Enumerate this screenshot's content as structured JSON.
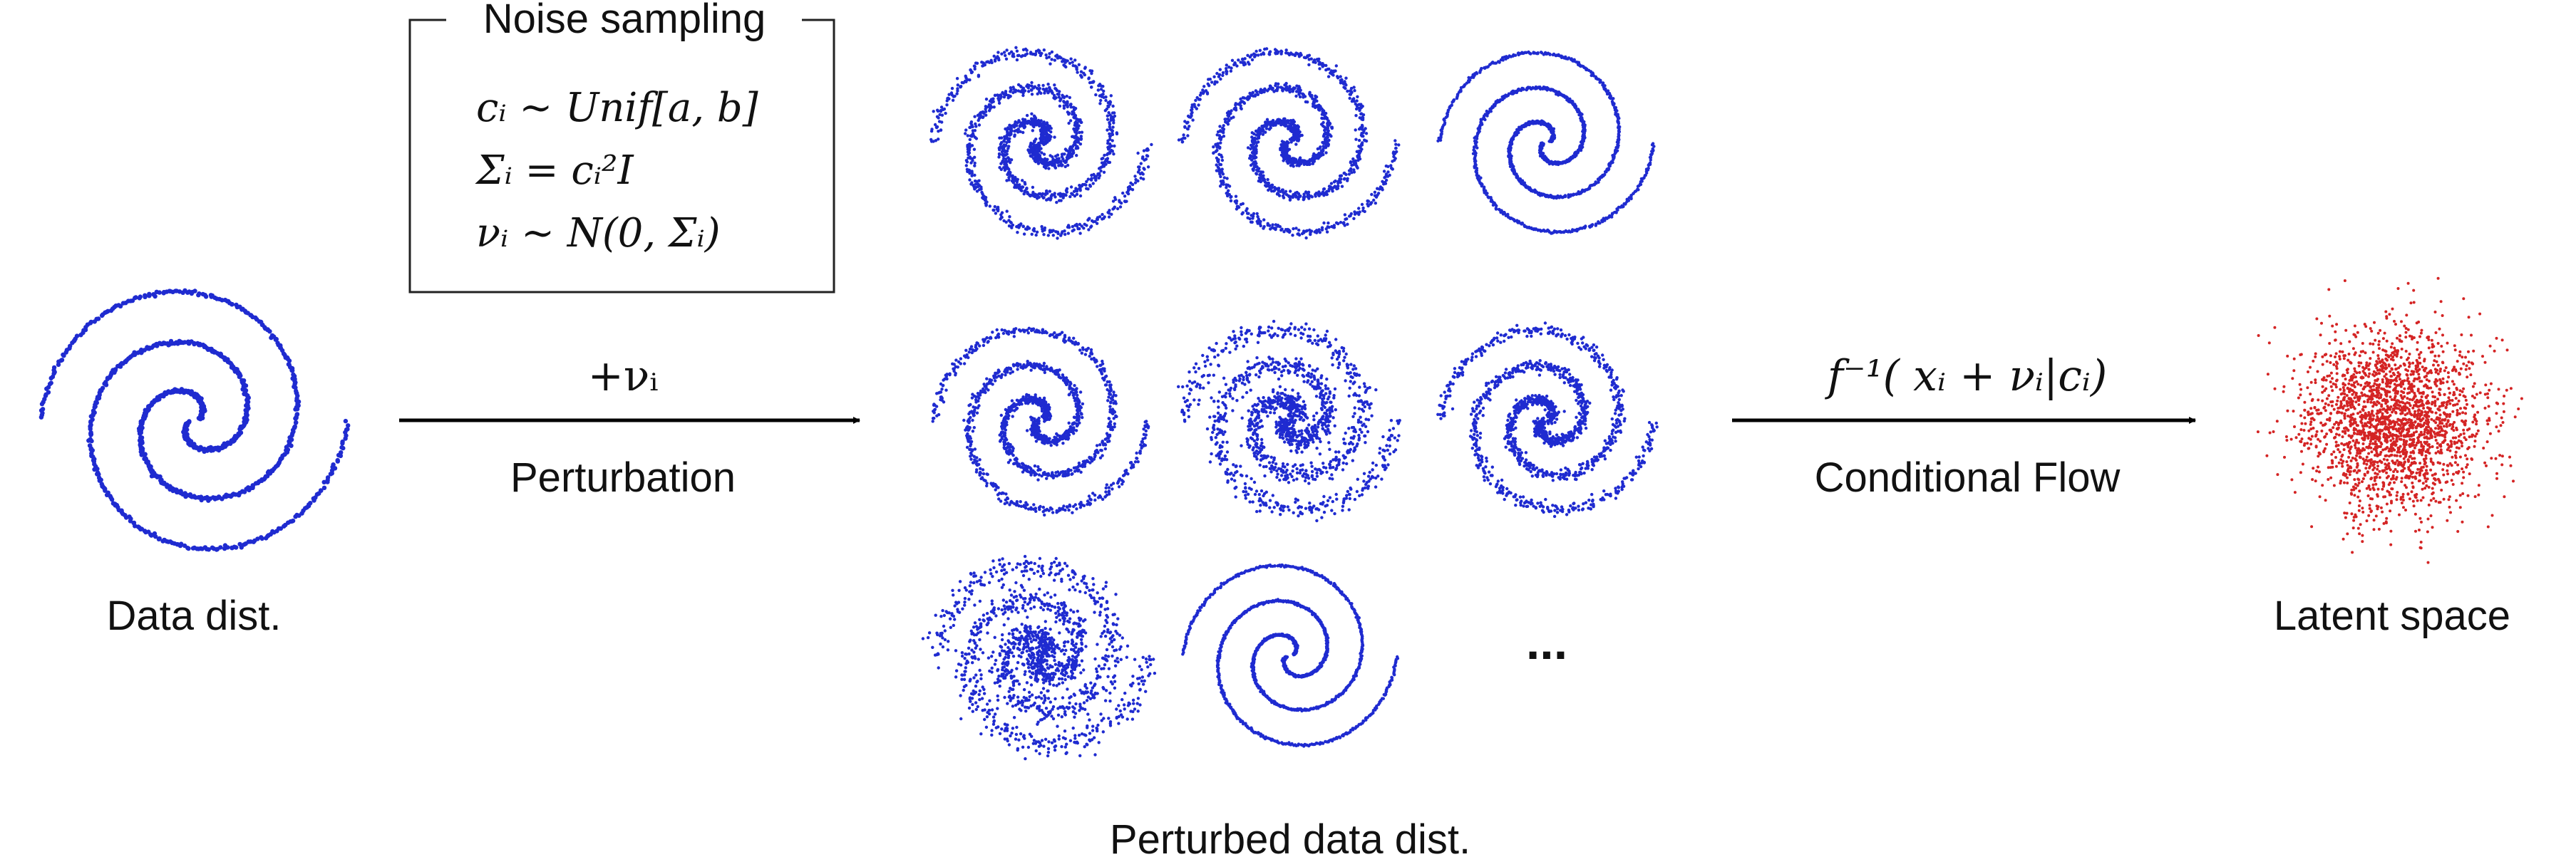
{
  "noise_box": {
    "title": "Noise sampling",
    "eq1": "cᵢ ~ Unif[a, b]",
    "eq2": "Σᵢ = cᵢ²I",
    "eq3": "νᵢ ~ N(0, Σᵢ)"
  },
  "labels": {
    "data_dist": "Data dist.",
    "perturbation_formula": "+νᵢ",
    "perturbation": "Perturbation",
    "perturbed": "Perturbed data dist.",
    "flow_formula": "f⁻¹( xᵢ + νᵢ|cᵢ)",
    "conditional_flow": "Conditional Flow",
    "latent": "Latent space",
    "ellipsis": "..."
  },
  "colors": {
    "spiral": "#1f2bd0",
    "latent": "#d42424",
    "text": "#111111",
    "arrow": "#000000"
  }
}
